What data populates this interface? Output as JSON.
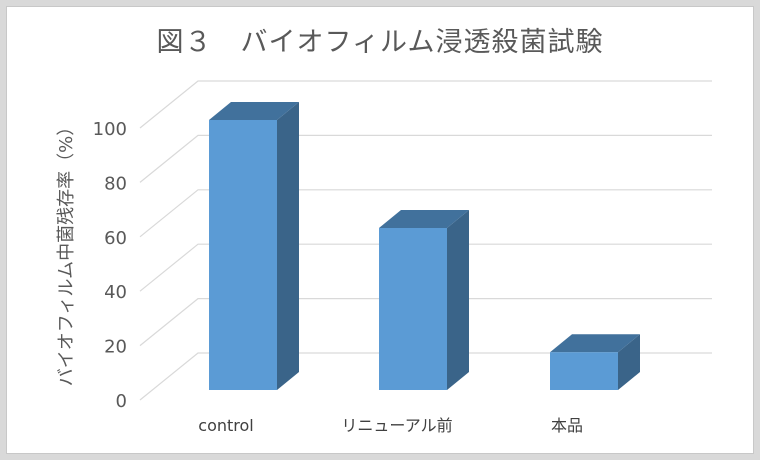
{
  "chart_data": {
    "type": "bar",
    "title": "図３　バイオフィルム浸透殺菌試験",
    "ylabel": "バイオフィルム中菌残存率（%）",
    "xlabel": "",
    "categories": [
      "control",
      "リニューアル前",
      "本品"
    ],
    "values": [
      100,
      60,
      14
    ],
    "ylim": [
      0,
      100
    ],
    "yticks": [
      "0",
      "20",
      "40",
      "60",
      "80",
      "100"
    ],
    "grid": true,
    "style": "3d-column"
  },
  "colors": {
    "bar_front": "#5b9bd5",
    "bar_side": "#3a6489",
    "bar_top": "#41719c",
    "grid": "#d9d9d9"
  }
}
